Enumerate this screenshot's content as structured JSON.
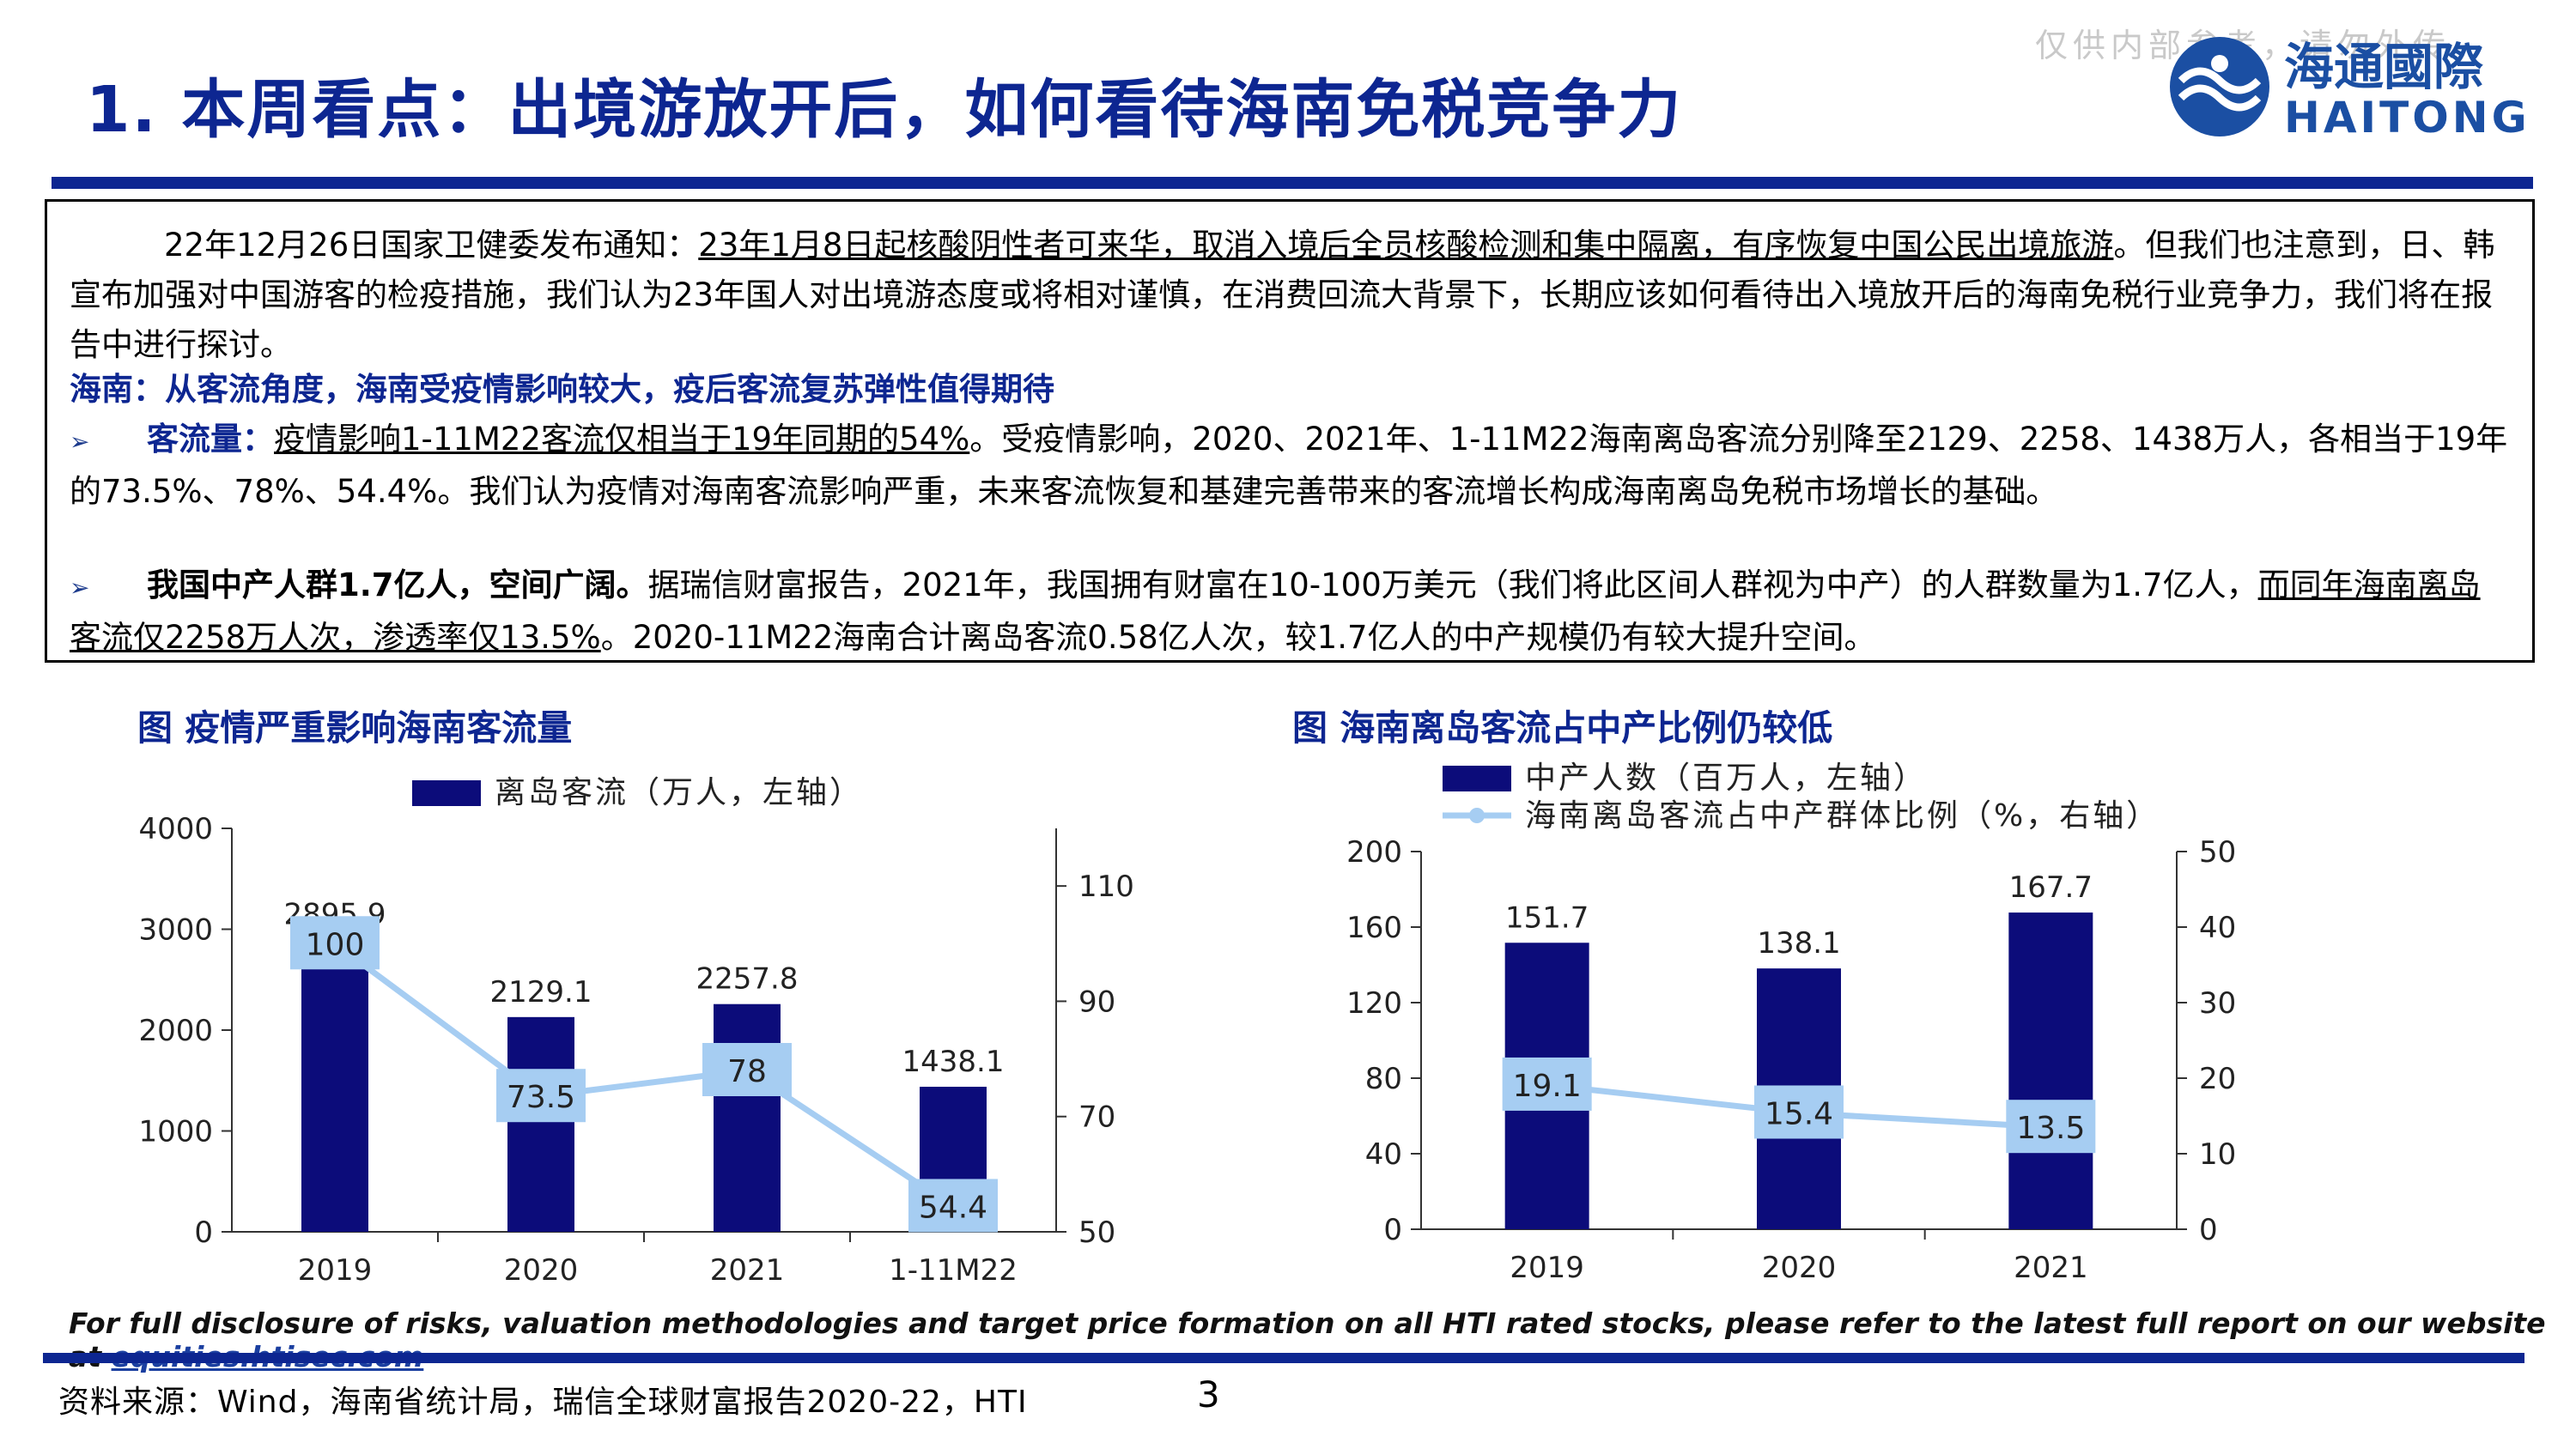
{
  "header": {
    "title": "1. 本周看点：出境游放开后，如何看待海南免税竞争力",
    "watermark": "仅供内部参考，请勿外传",
    "logo_cn": "海通國際",
    "logo_en": "HAITONG"
  },
  "summary": {
    "p1_a": "22年12月26日国家卫健委发布通知：",
    "p1_b": "23年1月8日起核酸阴性者可来华，取消入境后全员核酸检测和集中隔离，有序恢复中国公民出境旅游",
    "p1_c": "。但我们也注意到，日、韩宣布加强对中国游客的检疫措施，我们认为23年国人对出境游态度或将相对谨慎，在消费回流大背景下，长期应该如何看待出入境放开后的海南免税行业竞争力，我们将在报告中进行探讨。",
    "heading": "海南：从客流角度，海南受疫情影响较大，疫后客流复苏弹性值得期待",
    "b1_label": "客流量：",
    "b1_u": "疫情影响1-11M22客流仅相当于19年同期的54%",
    "b1_rest": "。受疫情影响，2020、2021年、1-11M22海南离岛客流分别降至2129、2258、1438万人，各相当于19年的73.5%、78%、54.4%。我们认为疫情对海南客流影响严重，未来客流恢复和基建完善带来的客流增长构成海南离岛免税市场增长的基础。",
    "b2_label": "我国中产人群1.7亿人，空间广阔。",
    "b2_a": "据瑞信财富报告，2021年，我国拥有财富在10-100万美元（我们将此区间人群视为中产）的人群数量为1.7亿人，",
    "b2_u": "而同年海南离岛客流仅2258万人次，渗透率仅13.5%",
    "b2_rest": "。2020-11M22海南合计离岛客流0.58亿人次，较1.7亿人的中产规模仍有较大提升空间。",
    "bullet": "➢"
  },
  "chart_titles": {
    "left": "图 疫情严重影响海南客流量",
    "right": "图 海南离岛客流占中产比例仍较低"
  },
  "chart_data": [
    {
      "type": "bar",
      "categories": [
        "2019",
        "2020",
        "2021",
        "1-11M22"
      ],
      "series": [
        {
          "name": "离岛客流（万人，左轴）",
          "values": [
            2895.9,
            2129.1,
            2257.8,
            1438.1
          ],
          "axis": "left",
          "kind": "bar"
        },
        {
          "values": [
            100.0,
            73.5,
            78.0,
            54.4
          ],
          "axis": "right",
          "kind": "line"
        }
      ],
      "y_left": {
        "min": 0,
        "max": 4000,
        "ticks": [
          0,
          1000,
          2000,
          3000,
          4000
        ]
      },
      "y_right": {
        "min": 50,
        "max": 120,
        "ticks": [
          50,
          70,
          90,
          110
        ]
      },
      "bar_color": "#0c0c7a",
      "line_color": "#a6cdf2"
    },
    {
      "type": "bar",
      "categories": [
        "2019",
        "2020",
        "2021"
      ],
      "series": [
        {
          "name": "中产人数（百万人，左轴）",
          "values": [
            151.7,
            138.1,
            167.7
          ],
          "axis": "left",
          "kind": "bar"
        },
        {
          "name": "海南离岛客流占中产群体比例（%，右轴）",
          "values": [
            19.1,
            15.4,
            13.5
          ],
          "axis": "right",
          "kind": "line"
        }
      ],
      "y_left": {
        "min": 0,
        "max": 200,
        "ticks": [
          0,
          40,
          80,
          120,
          160,
          200
        ]
      },
      "y_right": {
        "min": 0,
        "max": 50,
        "ticks": [
          0,
          10,
          20,
          30,
          40,
          50
        ]
      },
      "bar_color": "#0c0c7a",
      "line_color": "#a6cdf2"
    }
  ],
  "footer": {
    "disclaimer": "For full disclosure of risks, valuation methodologies and target price formation on all HTI rated stocks, please refer to the latest full report on our website at ",
    "link": "equities.htisec.com",
    "source": "资料来源：Wind，海南省统计局，瑞信全球财富报告2020-22，HTI",
    "page": "3"
  }
}
